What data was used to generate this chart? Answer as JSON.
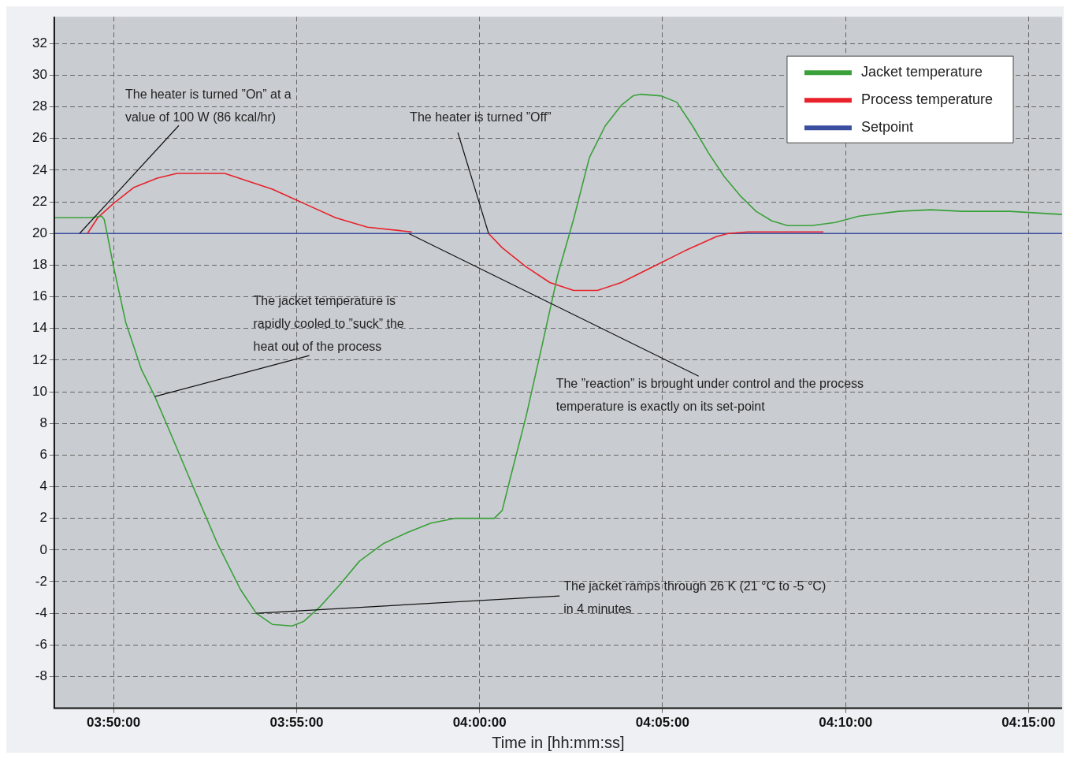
{
  "chart_data": {
    "type": "line",
    "xlabel": "Time in [hh:mm:ss]",
    "xlim": [
      3.8063,
      4.2653
    ],
    "xticks": [
      {
        "value": 3.8333,
        "label": "03:50:00"
      },
      {
        "value": 3.9167,
        "label": "03:55:00"
      },
      {
        "value": 4,
        "label": "04:00:00"
      },
      {
        "value": 4.0833,
        "label": "04:05:00"
      },
      {
        "value": 4.1667,
        "label": "04:10:00"
      },
      {
        "value": 4.25,
        "label": "04:15:00"
      }
    ],
    "ylim": [
      -10,
      33.7
    ],
    "yticks": [
      -8,
      -6,
      -4,
      -2,
      0,
      2,
      4,
      6,
      8,
      10,
      12,
      14,
      16,
      18,
      20,
      22,
      24,
      26,
      28,
      30,
      32
    ],
    "grid": true,
    "legend": "top right",
    "series": [
      {
        "name": "Jacket temperature",
        "color": "#3aa03a",
        "x": [
          3.8063,
          3.8225,
          3.8279,
          3.829,
          3.8305,
          3.8333,
          3.8388,
          3.846,
          3.8521,
          3.8604,
          3.8695,
          3.8803,
          3.8911,
          3.8983,
          3.9056,
          3.9146,
          3.92,
          3.9272,
          3.9363,
          3.9453,
          3.9561,
          3.967,
          3.9778,
          3.9886,
          3.9995,
          4.0067,
          4.0103,
          4.0139,
          4.0211,
          4.0284,
          4.0356,
          4.0428,
          4.05,
          4.0572,
          4.0645,
          4.0699,
          4.0735,
          4.0825,
          4.0898,
          4.097,
          4.1042,
          4.1114,
          4.1186,
          4.1259,
          4.1331,
          4.1403,
          4.1511,
          4.162,
          4.1728,
          4.1909,
          4.2053,
          4.2198,
          4.2414,
          4.2653
        ],
        "values": [
          21.0,
          21.0,
          21.1,
          20.9,
          19.9,
          17.9,
          14.4,
          11.4,
          9.7,
          7.0,
          4.0,
          0.5,
          -2.5,
          -4.0,
          -4.7,
          -4.8,
          -4.5,
          -3.6,
          -2.2,
          -0.7,
          0.4,
          1.1,
          1.7,
          2.0,
          2.0,
          2.0,
          2.5,
          4.5,
          8.4,
          12.9,
          17.4,
          20.9,
          24.8,
          26.8,
          28.1,
          28.7,
          28.8,
          28.7,
          28.3,
          26.8,
          25.1,
          23.6,
          22.4,
          21.4,
          20.8,
          20.5,
          20.5,
          20.7,
          21.1,
          21.4,
          21.5,
          21.4,
          21.4,
          21.2
        ]
      },
      {
        "name": "Process temperature",
        "color": "#e8212a",
        "x": [
          3.8214,
          3.8261,
          3.8333,
          3.8424,
          3.8532,
          3.8622,
          3.8839,
          3.8947,
          3.9056,
          3.92,
          3.9344,
          3.9489,
          3.9691,
          3.9868,
          4.0041,
          4.0103,
          4.0211,
          4.032,
          4.0428,
          4.0536,
          4.0645,
          4.0789,
          4.0934,
          4.1078,
          4.1132,
          4.1222,
          4.1367,
          4.1566
        ],
        "values": [
          20.0,
          21.0,
          21.9,
          22.9,
          23.5,
          23.8,
          23.8,
          23.3,
          22.8,
          21.9,
          21.0,
          20.4,
          20.1,
          null,
          20.0,
          19.1,
          17.9,
          16.9,
          16.4,
          16.4,
          16.9,
          17.9,
          18.9,
          19.8,
          20.0,
          20.1,
          20.1,
          20.1
        ]
      },
      {
        "name": "Setpoint",
        "color": "#3a4fa0",
        "x": [
          3.8063,
          4.2653
        ],
        "values": [
          20,
          20
        ]
      }
    ],
    "annotations": [
      {
        "text": "The heater is turned ”On” at a value of 100 W (86 kcal/hr)",
        "x": 3.8178,
        "y": 20
      },
      {
        "text": "The heater is turned ”Off”",
        "x": 4.0041,
        "y": 20
      },
      {
        "text": "The jacket temperature is rapidly cooled to ”suck” the heat out of the process",
        "x": 3.8521,
        "y": 9.7
      },
      {
        "text": "The ”reaction” is brought under control and the process temperature is exactly on its set-point",
        "x": 3.9677,
        "y": 20
      },
      {
        "text": "The jacket ramps through 26 K (21 °C to -5 °C) in 4 minutes",
        "x": 3.8983,
        "y": -4.0
      }
    ]
  }
}
